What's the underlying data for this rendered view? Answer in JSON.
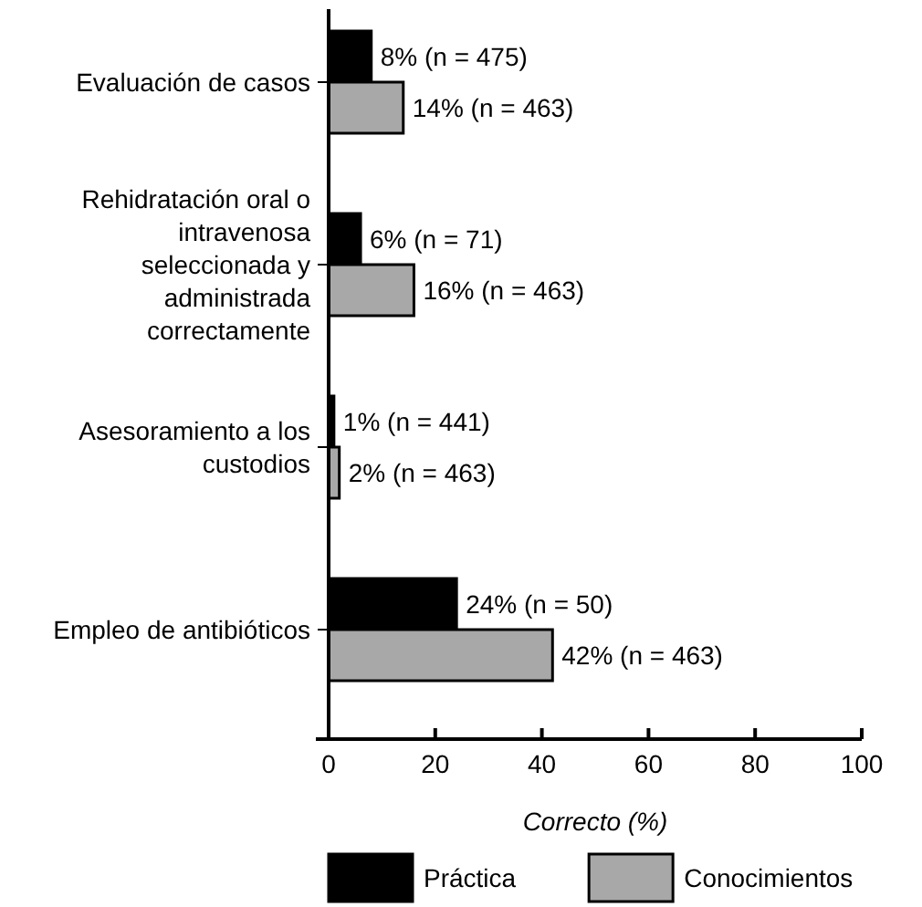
{
  "chart_data": {
    "type": "bar",
    "orientation": "horizontal",
    "xlabel": "Correcto (%)",
    "categories": [
      "Evaluación de casos",
      "Rehidratación oral o intravenosa seleccionada y administrada correctamente",
      "Asesoramiento a los custodios",
      "Empleo de antibióticos"
    ],
    "series": [
      {
        "name": "Práctica",
        "color": "#000000",
        "values": [
          8,
          6,
          1,
          24
        ],
        "value_labels": [
          "8% (n = 475)",
          "6% (n = 71)",
          "1% (n = 441)",
          "24% (n = 50)"
        ]
      },
      {
        "name": "Conocimientos",
        "color": "#a8a8a8",
        "values": [
          14,
          16,
          2,
          42
        ],
        "value_labels": [
          "14% (n = 463)",
          "16% (n = 463)",
          "2% (n = 463)",
          "42% (n = 463)"
        ]
      }
    ],
    "xlim": [
      0,
      100
    ],
    "xticks": [
      0,
      20,
      40,
      60,
      80,
      100
    ],
    "legend": "bottom",
    "grid": false
  }
}
